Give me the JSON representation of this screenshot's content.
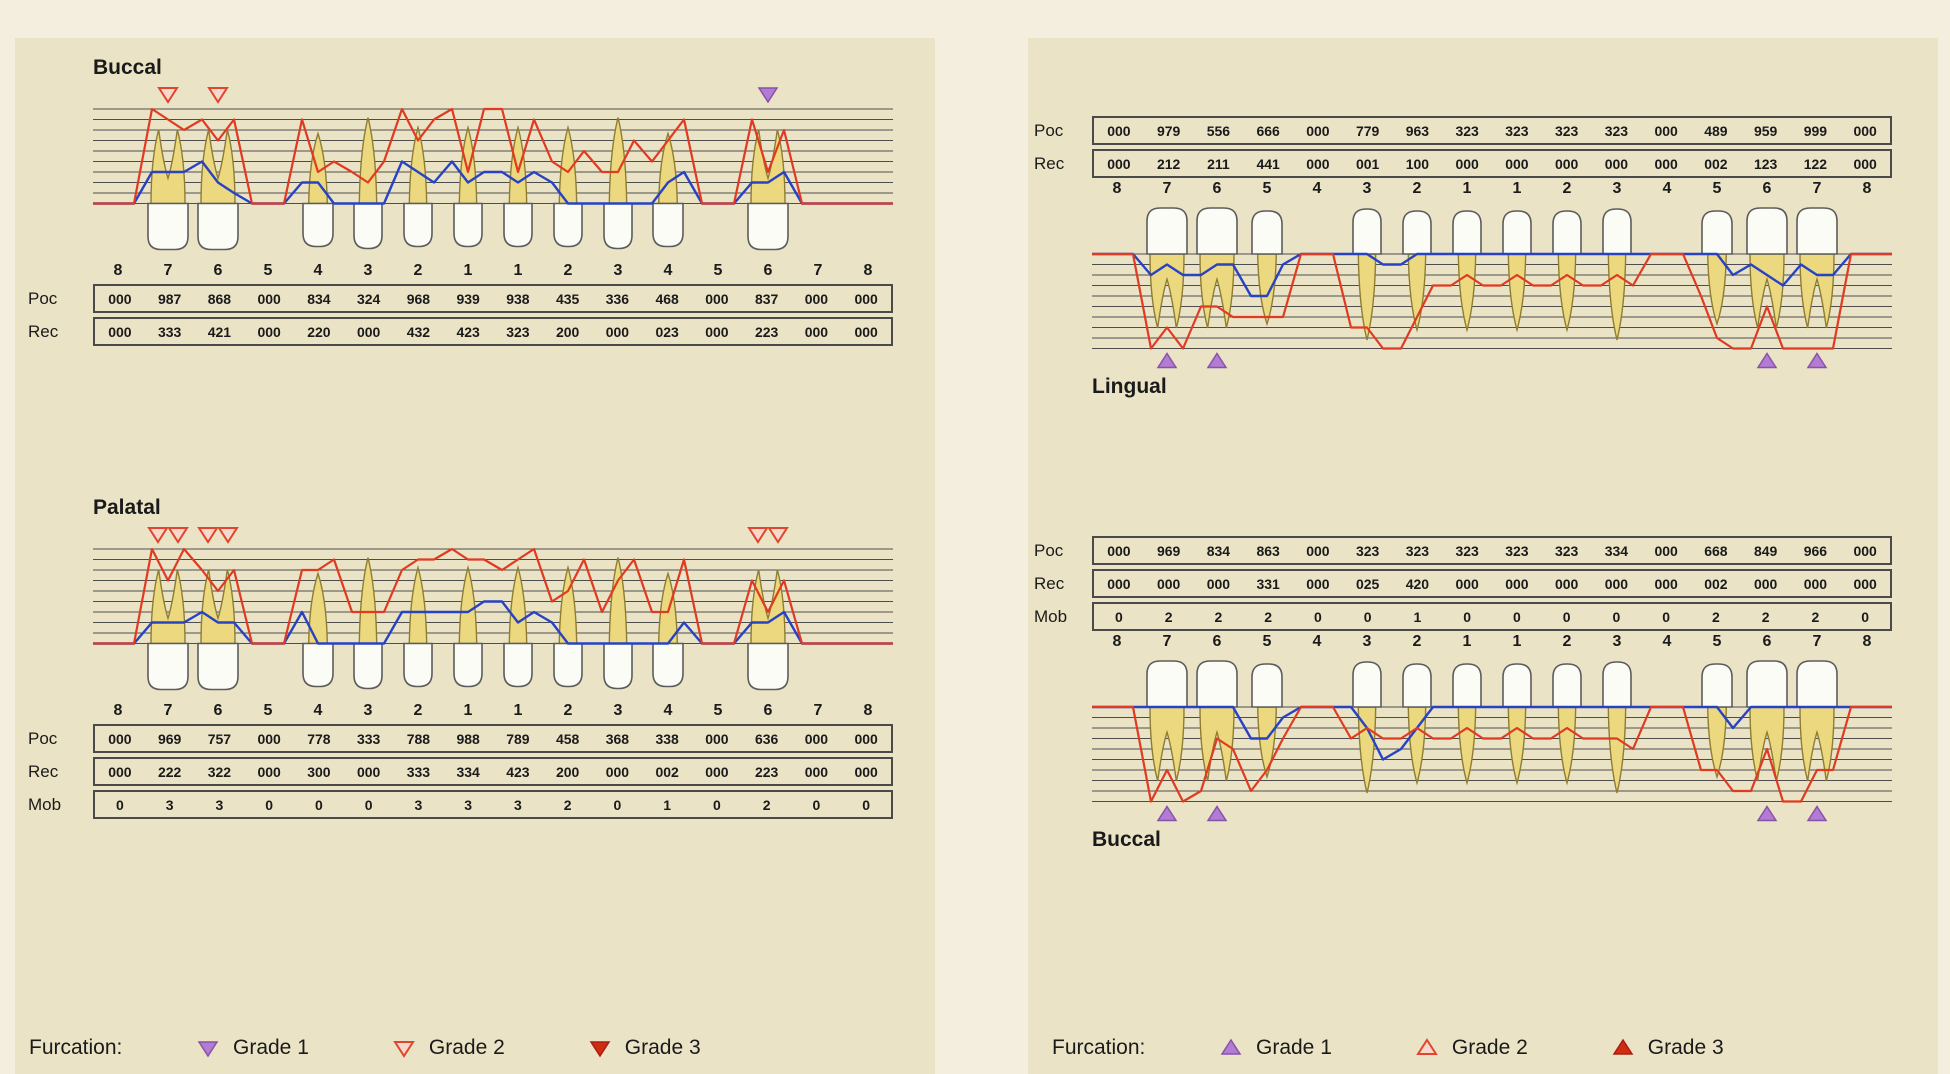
{
  "colors": {
    "page_bg": "#f3eedd",
    "panel_bg": "#ebe3c6",
    "grid": "#4d4d4d",
    "box_border": "#4a4a4a",
    "poc_line": "#e03a22",
    "rec_line": "#2743c4",
    "root_fill": "#ecd97f",
    "root_stroke": "#8e7d33",
    "crown_fill": "#fcfcf6",
    "crown_stroke": "#5c5c5c",
    "grade1_fill": "#b27bd4",
    "grade1_stroke": "#8753a8",
    "grade2_fill": "#f7d8cd",
    "grade2_stroke": "#e2452e",
    "grade3_fill": "#d22b14",
    "grade3_stroke": "#a81f0e"
  },
  "tooth_numbers": [
    "8",
    "7",
    "6",
    "5",
    "4",
    "3",
    "2",
    "1",
    "1",
    "2",
    "3",
    "4",
    "5",
    "6",
    "7",
    "8"
  ],
  "maxilla": {
    "buccal": {
      "label": "Buccal",
      "rows": [
        {
          "label": "Poc",
          "values": [
            "000",
            "987",
            "868",
            "000",
            "834",
            "324",
            "968",
            "939",
            "938",
            "435",
            "336",
            "468",
            "000",
            "837",
            "000",
            "000"
          ]
        },
        {
          "label": "Rec",
          "values": [
            "000",
            "333",
            "421",
            "000",
            "220",
            "000",
            "432",
            "423",
            "323",
            "200",
            "000",
            "023",
            "000",
            "223",
            "000",
            "000"
          ]
        }
      ],
      "furcation": [
        {
          "slot": 1,
          "grade": 2
        },
        {
          "slot": 2,
          "grade": 2
        },
        {
          "slot": 13,
          "grade": 1
        }
      ]
    },
    "palatal": {
      "label": "Palatal",
      "rows": [
        {
          "label": "Poc",
          "values": [
            "000",
            "969",
            "757",
            "000",
            "778",
            "333",
            "788",
            "988",
            "789",
            "458",
            "368",
            "338",
            "000",
            "636",
            "000",
            "000"
          ]
        },
        {
          "label": "Rec",
          "values": [
            "000",
            "222",
            "322",
            "000",
            "300",
            "000",
            "333",
            "334",
            "423",
            "200",
            "000",
            "002",
            "000",
            "223",
            "000",
            "000"
          ]
        },
        {
          "label": "Mob",
          "values": [
            "0",
            "3",
            "3",
            "0",
            "0",
            "0",
            "3",
            "3",
            "3",
            "2",
            "0",
            "1",
            "0",
            "2",
            "0",
            "0"
          ]
        }
      ],
      "furcation": [
        {
          "slot": 0.8,
          "grade": 2
        },
        {
          "slot": 1.2,
          "grade": 2
        },
        {
          "slot": 1.8,
          "grade": 2
        },
        {
          "slot": 2.2,
          "grade": 2
        },
        {
          "slot": 12.8,
          "grade": 2
        },
        {
          "slot": 13.2,
          "grade": 2
        }
      ]
    },
    "legend": {
      "label": "Furcation:",
      "direction": "down",
      "items": [
        {
          "label": "Grade 1",
          "grade": 1
        },
        {
          "label": "Grade 2",
          "grade": 2
        },
        {
          "label": "Grade 3",
          "grade": 3
        }
      ]
    }
  },
  "mandible": {
    "lingual": {
      "label": "Lingual",
      "rows": [
        {
          "label": "Poc",
          "values": [
            "000",
            "979",
            "556",
            "666",
            "000",
            "779",
            "963",
            "323",
            "323",
            "323",
            "323",
            "000",
            "489",
            "959",
            "999",
            "000"
          ]
        },
        {
          "label": "Rec",
          "values": [
            "000",
            "212",
            "211",
            "441",
            "000",
            "001",
            "100",
            "000",
            "000",
            "000",
            "000",
            "000",
            "002",
            "123",
            "122",
            "000"
          ]
        }
      ],
      "furcation": [
        {
          "slot": 1,
          "grade": 1
        },
        {
          "slot": 2,
          "grade": 1
        },
        {
          "slot": 13,
          "grade": 1
        },
        {
          "slot": 14,
          "grade": 1
        }
      ]
    },
    "buccal": {
      "label": "Buccal",
      "rows": [
        {
          "label": "Poc",
          "values": [
            "000",
            "969",
            "834",
            "863",
            "000",
            "323",
            "323",
            "323",
            "323",
            "323",
            "334",
            "000",
            "668",
            "849",
            "966",
            "000"
          ]
        },
        {
          "label": "Rec",
          "values": [
            "000",
            "000",
            "000",
            "331",
            "000",
            "025",
            "420",
            "000",
            "000",
            "000",
            "000",
            "000",
            "002",
            "000",
            "000",
            "000"
          ]
        },
        {
          "label": "Mob",
          "values": [
            "0",
            "2",
            "2",
            "2",
            "0",
            "0",
            "1",
            "0",
            "0",
            "0",
            "0",
            "0",
            "2",
            "2",
            "2",
            "0"
          ]
        }
      ],
      "furcation": [
        {
          "slot": 1,
          "grade": 1
        },
        {
          "slot": 2,
          "grade": 1
        },
        {
          "slot": 13,
          "grade": 1
        },
        {
          "slot": 14,
          "grade": 1
        }
      ]
    },
    "legend": {
      "label": "Furcation:",
      "direction": "up",
      "items": [
        {
          "label": "Grade 1",
          "grade": 1
        },
        {
          "label": "Grade 2",
          "grade": 2
        },
        {
          "label": "Grade 3",
          "grade": 3
        }
      ]
    }
  }
}
